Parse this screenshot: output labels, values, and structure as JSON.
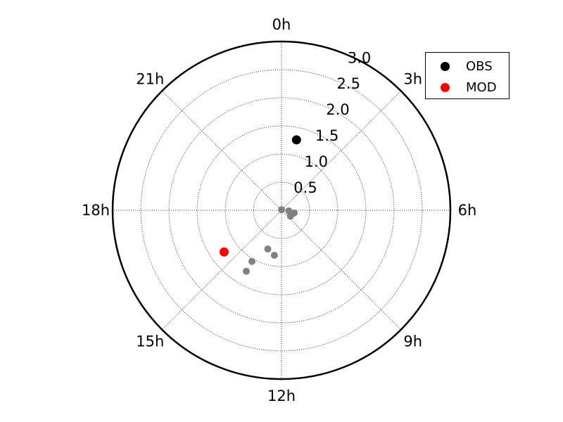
{
  "chart_data": {
    "type": "scatter",
    "projection": "polar",
    "theta_direction": "clockwise",
    "theta_zero": "top",
    "angle_ticks": [
      "0h",
      "3h",
      "6h",
      "9h",
      "12h",
      "15h",
      "18h",
      "21h"
    ],
    "radial_ticks": [
      "0.5",
      "1.0",
      "1.5",
      "2.0",
      "2.5",
      "3.0"
    ],
    "rlim": [
      0,
      3.0
    ],
    "grid": true,
    "legend_position": "top-right",
    "series": [
      {
        "name": "OBS",
        "color": "#000000",
        "points": [
          {
            "hour": 0.8,
            "r": 1.28
          }
        ]
      },
      {
        "name": "MOD",
        "color": "#ff0000",
        "points": [
          {
            "hour": 15.6,
            "r": 1.26
          }
        ]
      },
      {
        "name": "",
        "color": "#808080",
        "points": [
          {
            "hour": 0.0,
            "r": 0.01
          },
          {
            "hour": 6.3,
            "r": 0.13
          },
          {
            "hour": 6.8,
            "r": 0.23
          },
          {
            "hour": 8.2,
            "r": 0.19
          },
          {
            "hour": 13.3,
            "r": 0.73
          },
          {
            "hour": 12.6,
            "r": 0.81
          },
          {
            "hour": 14.0,
            "r": 1.05
          },
          {
            "hour": 14.0,
            "r": 1.25
          }
        ]
      }
    ]
  }
}
